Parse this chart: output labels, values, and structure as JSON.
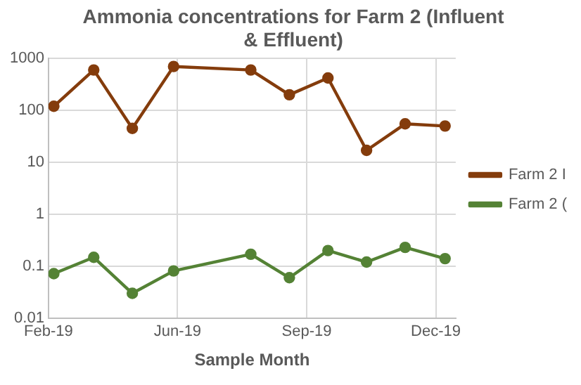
{
  "chart_data": {
    "type": "line",
    "title": "Ammonia concentrations for Farm 2 (Influent & Effluent)",
    "xlabel": "Sample Month",
    "x": [
      "2019-03-01",
      "2019-03-31",
      "2019-04-29",
      "2019-05-30",
      "2019-07-27",
      "2019-08-25",
      "2019-09-23",
      "2019-10-22",
      "2019-11-20",
      "2019-12-20"
    ],
    "series": [
      {
        "name": "Farm 2 I",
        "color": "#843c0c",
        "values": [
          120,
          600,
          45,
          700,
          600,
          200,
          420,
          17,
          55,
          50
        ]
      },
      {
        "name": "Farm 2 (",
        "color": "#548235",
        "values": [
          0.072,
          0.148,
          0.03,
          0.081,
          0.17,
          0.06,
          0.2,
          0.12,
          0.23,
          0.14
        ]
      }
    ],
    "xlim": [
      "2019-02-25",
      "2019-12-28"
    ],
    "xticks": [
      {
        "value": "2019-02-25",
        "label": "Feb-19"
      },
      {
        "value": "2019-06-02",
        "label": "Jun-19"
      },
      {
        "value": "2019-09-07",
        "label": "Sep-19"
      },
      {
        "value": "2019-12-13",
        "label": "Dec-19"
      }
    ],
    "ylim": [
      0.01,
      1000
    ],
    "yticks": [
      0.01,
      0.1,
      1,
      10,
      100,
      1000
    ],
    "log": "y",
    "grid": true,
    "legend": "right",
    "marker": "circle",
    "line_style": "solid"
  }
}
